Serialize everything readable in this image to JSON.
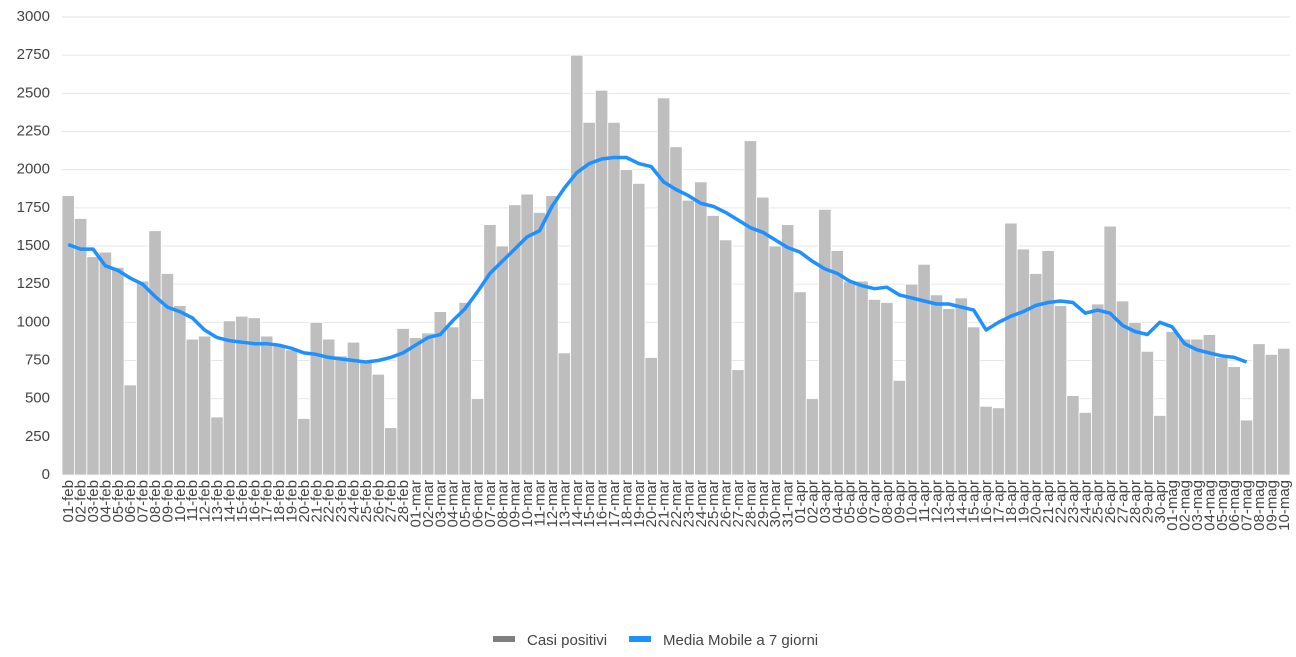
{
  "chart_data": {
    "type": "bar",
    "categories": [
      "01-feb",
      "02-feb",
      "03-feb",
      "04-feb",
      "05-feb",
      "06-feb",
      "07-feb",
      "08-feb",
      "09-feb",
      "10-feb",
      "11-feb",
      "12-feb",
      "13-feb",
      "14-feb",
      "15-feb",
      "16-feb",
      "17-feb",
      "18-feb",
      "19-feb",
      "20-feb",
      "21-feb",
      "22-feb",
      "23-feb",
      "24-feb",
      "25-feb",
      "26-feb",
      "27-feb",
      "28-feb",
      "01-mar",
      "02-mar",
      "03-mar",
      "04-mar",
      "05-mar",
      "06-mar",
      "07-mar",
      "08-mar",
      "09-mar",
      "10-mar",
      "11-mar",
      "12-mar",
      "13-mar",
      "14-mar",
      "15-mar",
      "16-mar",
      "17-mar",
      "18-mar",
      "19-mar",
      "20-mar",
      "21-mar",
      "22-mar",
      "23-mar",
      "24-mar",
      "25-mar",
      "26-mar",
      "27-mar",
      "28-mar",
      "29-mar",
      "30-mar",
      "31-mar",
      "01-apr",
      "02-apr",
      "03-apr",
      "04-apr",
      "05-apr",
      "06-apr",
      "07-apr",
      "08-apr",
      "09-apr",
      "10-apr",
      "11-apr",
      "12-apr",
      "13-apr",
      "14-apr",
      "15-apr",
      "16-apr",
      "17-apr",
      "18-apr",
      "19-apr",
      "20-apr",
      "21-apr",
      "22-apr",
      "23-apr",
      "24-apr",
      "25-apr",
      "26-apr",
      "27-apr",
      "28-apr",
      "29-apr",
      "30-apr",
      "01-mag",
      "02-mag",
      "03-mag",
      "04-mag",
      "05-mag",
      "06-mag",
      "07-mag",
      "08-mag",
      "09-mag",
      "10-mag"
    ],
    "series": [
      {
        "name": "Casi positivi",
        "color": "#bebebe",
        "values": [
          1830,
          1680,
          1430,
          1460,
          1360,
          590,
          1270,
          1600,
          1320,
          1110,
          890,
          910,
          380,
          1010,
          1040,
          1030,
          910,
          850,
          820,
          370,
          1000,
          890,
          780,
          870,
          750,
          660,
          310,
          960,
          900,
          930,
          1070,
          970,
          1130,
          500,
          1640,
          1500,
          1770,
          1840,
          1720,
          1830,
          800,
          2750,
          2310,
          2520,
          2310,
          2000,
          1910,
          770,
          2470,
          2150,
          1800,
          1920,
          1700,
          1540,
          690,
          2190,
          1820,
          1500,
          1640,
          1200,
          500,
          1740,
          1470,
          1270,
          1270,
          1150,
          1130,
          620,
          1250,
          1380,
          1180,
          1090,
          1160,
          970,
          450,
          440,
          1650,
          1480,
          1320,
          1470,
          1110,
          520,
          410,
          1120,
          1630,
          1140,
          1000,
          810,
          390,
          940,
          890,
          890,
          920,
          770,
          710,
          360,
          860,
          790,
          830
        ]
      },
      {
        "name": "Media Mobile a 7 giorni",
        "color": "#1e90ff",
        "type": "line",
        "values": [
          1510,
          1480,
          1480,
          1370,
          1340,
          1290,
          1250,
          1170,
          1100,
          1070,
          1030,
          950,
          900,
          880,
          870,
          860,
          860,
          850,
          830,
          800,
          790,
          770,
          760,
          750,
          740,
          750,
          770,
          800,
          850,
          900,
          920,
          1010,
          1090,
          1200,
          1320,
          1400,
          1480,
          1560,
          1600,
          1760,
          1880,
          1980,
          2040,
          2070,
          2080,
          2080,
          2040,
          2020,
          1920,
          1870,
          1830,
          1780,
          1760,
          1720,
          1670,
          1620,
          1590,
          1540,
          1490,
          1460,
          1400,
          1350,
          1320,
          1270,
          1240,
          1220,
          1230,
          1180,
          1160,
          1140,
          1120,
          1120,
          1100,
          1080,
          950,
          1000,
          1040,
          1070,
          1110,
          1130,
          1140,
          1130,
          1060,
          1080,
          1060,
          980,
          940,
          920,
          1000,
          970,
          860,
          820,
          800,
          780,
          770,
          740,
          null,
          null,
          null
        ]
      }
    ],
    "ylim": [
      0,
      3000
    ],
    "yticks": [
      0,
      250,
      500,
      750,
      1000,
      1250,
      1500,
      1750,
      2000,
      2250,
      2500,
      2750,
      3000
    ],
    "grid": true,
    "legend": "bottom"
  }
}
